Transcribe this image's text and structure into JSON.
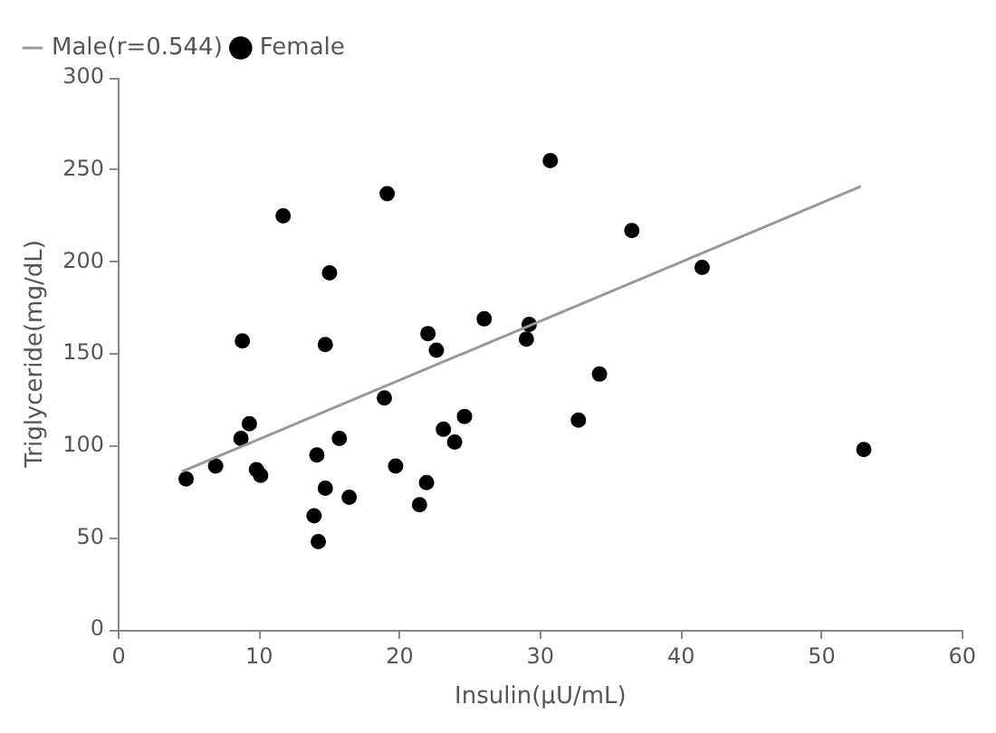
{
  "chart_data": {
    "type": "scatter",
    "xlabel": "Insulin(μU/mL)",
    "ylabel": "Triglyceride(mg/dL)",
    "xlim": [
      0,
      60
    ],
    "xticks": [
      0,
      10,
      20,
      30,
      40,
      50,
      60
    ],
    "ylim": [
      0,
      300
    ],
    "yticks": [
      0,
      50,
      100,
      150,
      200,
      250,
      300
    ],
    "grid": false,
    "legend": "top left",
    "series": [
      {
        "name": "Male(r=0.544)",
        "type": "line",
        "color": "#999999",
        "marker": "none",
        "x": [
          4.5,
          52.8
        ],
        "values": [
          86,
          241
        ]
      },
      {
        "name": "Female",
        "type": "scatter",
        "color": "#000000",
        "marker": "circle",
        "x": [
          4.8,
          6.9,
          8.7,
          9.3,
          9.8,
          10.1,
          14.1,
          13.9,
          14.2,
          14.7,
          15.7,
          16.4,
          18.9,
          19.7,
          21.4,
          21.9,
          23.1,
          23.9,
          24.6,
          22.6,
          8.8,
          11.7,
          19.1,
          15.0,
          14.7,
          22.0,
          26.0,
          29.2,
          29.0,
          30.7,
          36.5,
          41.5,
          34.2,
          32.7,
          53.0
        ],
        "values": [
          82,
          89,
          104,
          112,
          87,
          84,
          95,
          62,
          48,
          77,
          104,
          72,
          126,
          89,
          68,
          80,
          109,
          102,
          116,
          152,
          157,
          225,
          237,
          194,
          155,
          161,
          169,
          166,
          158,
          255,
          217,
          197,
          139,
          114,
          98
        ]
      }
    ]
  }
}
